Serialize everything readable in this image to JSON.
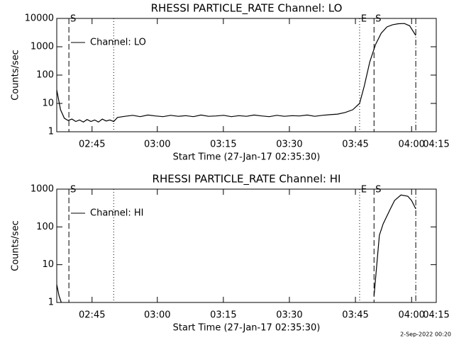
{
  "chart_data": [
    {
      "type": "line",
      "title": "RHESSI PARTICLE_RATE Channel: LO",
      "xlabel": "Start Time (27-Jan-17 02:35:30)",
      "ylabel": "Counts/sec",
      "log_y": true,
      "xlim": [
        0,
        100
      ],
      "ylim": [
        1,
        10000
      ],
      "xticks": [
        {
          "value": 9.3,
          "label": "02:45"
        },
        {
          "value": 26.5,
          "label": "03:00"
        },
        {
          "value": 43.9,
          "label": "03:15"
        },
        {
          "value": 61.3,
          "label": "03:30"
        },
        {
          "value": 78.7,
          "label": "03:45"
        },
        {
          "value": 93.5,
          "label": "04:00"
        },
        {
          "value": 100,
          "label": "04:15"
        }
      ],
      "yticks": [
        1,
        10,
        100,
        1000,
        10000
      ],
      "legend": "upper left",
      "markers": [
        {
          "x": 3.2,
          "style": "dashed",
          "label": "S"
        },
        {
          "x": 15,
          "style": "dotted"
        },
        {
          "x": 79.8,
          "style": "dotted",
          "label": "E"
        },
        {
          "x": 83.6,
          "style": "dashed",
          "label": "S"
        },
        {
          "x": 94.6,
          "style": "dashdot"
        }
      ],
      "series": [
        {
          "name": "Channel: LO",
          "color": "#000000",
          "x": [
            0,
            1,
            2,
            3,
            4,
            5,
            6,
            7,
            8,
            9,
            10,
            11,
            12,
            13,
            14,
            15,
            16,
            18,
            20,
            22,
            24,
            26,
            28,
            30,
            32,
            34,
            36,
            38,
            40,
            42,
            44,
            46,
            48,
            50,
            52,
            54,
            56,
            58,
            60,
            62,
            64,
            66,
            68,
            70,
            72,
            74,
            76,
            78,
            79.8,
            81,
            82.5,
            84,
            85.5,
            87,
            88.5,
            90,
            91.6,
            93,
            94.6
          ],
          "values": [
            30,
            6,
            3,
            2.5,
            2.8,
            2.3,
            2.6,
            2.2,
            2.7,
            2.3,
            2.6,
            2.2,
            2.8,
            2.4,
            2.6,
            2.3,
            3.2,
            3.5,
            3.8,
            3.4,
            3.9,
            3.6,
            3.4,
            3.8,
            3.5,
            3.7,
            3.4,
            3.9,
            3.5,
            3.6,
            3.8,
            3.4,
            3.7,
            3.5,
            3.9,
            3.6,
            3.4,
            3.8,
            3.5,
            3.7,
            3.6,
            3.9,
            3.5,
            3.8,
            4,
            4.2,
            4.8,
            6,
            10,
            40,
            300,
            1200,
            3000,
            5000,
            6000,
            6500,
            6600,
            5500,
            2500
          ]
        }
      ]
    },
    {
      "type": "line",
      "title": "RHESSI PARTICLE_RATE Channel: HI",
      "xlabel": "Start Time (27-Jan-17 02:35:30)",
      "ylabel": "Counts/sec",
      "log_y": true,
      "xlim": [
        0,
        100
      ],
      "ylim": [
        1,
        1000
      ],
      "xticks": [
        {
          "value": 9.3,
          "label": "02:45"
        },
        {
          "value": 26.5,
          "label": "03:00"
        },
        {
          "value": 43.9,
          "label": "03:15"
        },
        {
          "value": 61.3,
          "label": "03:30"
        },
        {
          "value": 78.7,
          "label": "03:45"
        },
        {
          "value": 93.5,
          "label": "04:00"
        },
        {
          "value": 100,
          "label": "04:15"
        }
      ],
      "yticks": [
        1,
        10,
        100,
        1000
      ],
      "legend": "upper left",
      "markers": [
        {
          "x": 3.2,
          "style": "dashed",
          "label": "S"
        },
        {
          "x": 15,
          "style": "dotted"
        },
        {
          "x": 79.8,
          "style": "dotted",
          "label": "E"
        },
        {
          "x": 83.6,
          "style": "dashed",
          "label": "S"
        },
        {
          "x": 94.6,
          "style": "dashdot"
        }
      ],
      "series": [
        {
          "name": "Channel: HI",
          "color": "#000000",
          "x": [
            0,
            0.6,
            1.2,
            40,
            83.6,
            85,
            86,
            87.9,
            89,
            90.7,
            92.5,
            93.5,
            94.6
          ],
          "values": [
            3,
            1.5,
            1,
            null,
            1.5,
            60,
            120,
            300,
            500,
            700,
            650,
            500,
            300
          ]
        }
      ]
    }
  ],
  "footer": "2-Sep-2022 00:20"
}
